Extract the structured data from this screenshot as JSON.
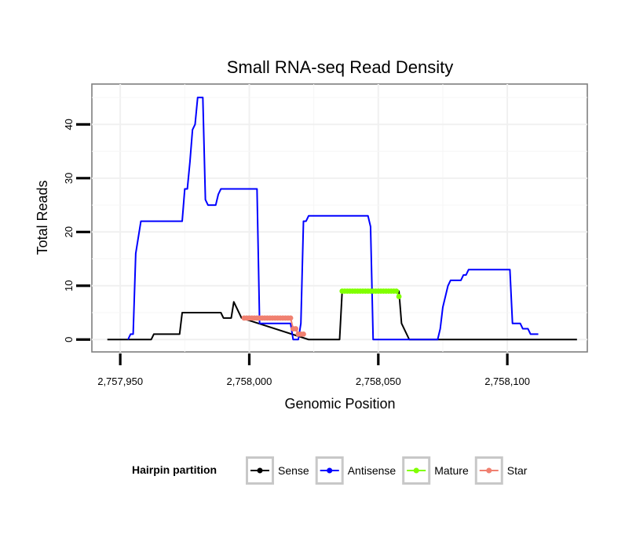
{
  "chart_data": {
    "type": "line",
    "title": "Small RNA-seq Read Density",
    "xlabel": "Genomic Position",
    "ylabel": "Total Reads",
    "xlim": [
      2757939,
      2758131
    ],
    "ylim": [
      -2.3,
      47.5
    ],
    "x_ticks": [
      2757950,
      2758000,
      2758050,
      2758100
    ],
    "x_tick_labels": [
      "2,757,950",
      "2,758,000",
      "2,758,050",
      "2,758,100"
    ],
    "y_ticks": [
      0,
      10,
      20,
      30,
      40
    ],
    "y_tick_labels": [
      "0",
      "10",
      "20",
      "30",
      "40"
    ],
    "grid": true,
    "legend": {
      "title": "Hairpin partition",
      "position": "bottom",
      "entries": [
        "Sense",
        "Antisense",
        "Mature",
        "Star"
      ]
    },
    "series": [
      {
        "name": "Sense",
        "color": "#000000",
        "marker": false,
        "points": [
          [
            2757945,
            0
          ],
          [
            2757962,
            0
          ],
          [
            2757963,
            1
          ],
          [
            2757973,
            1
          ],
          [
            2757974,
            5
          ],
          [
            2757989,
            5
          ],
          [
            2757990,
            4
          ],
          [
            2757993,
            4
          ],
          [
            2757994,
            7
          ],
          [
            2757997,
            4
          ],
          [
            2758023,
            0
          ],
          [
            2758035,
            0
          ],
          [
            2758036,
            9
          ],
          [
            2758058,
            9
          ],
          [
            2758059,
            3
          ],
          [
            2758062,
            0
          ],
          [
            2758127,
            0
          ]
        ]
      },
      {
        "name": "Antisense",
        "color": "#0000ff",
        "marker": false,
        "points": [
          [
            2757953,
            0
          ],
          [
            2757954,
            1
          ],
          [
            2757955,
            1
          ],
          [
            2757956,
            16
          ],
          [
            2757958,
            22
          ],
          [
            2757974,
            22
          ],
          [
            2757975,
            28
          ],
          [
            2757976,
            28
          ],
          [
            2757977,
            33
          ],
          [
            2757978,
            39
          ],
          [
            2757979,
            40
          ],
          [
            2757980,
            45
          ],
          [
            2757982,
            45
          ],
          [
            2757983,
            26
          ],
          [
            2757984,
            25
          ],
          [
            2757987,
            25
          ],
          [
            2757988,
            27
          ],
          [
            2757989,
            28
          ],
          [
            2758003,
            28
          ],
          [
            2758004,
            3
          ],
          [
            2758016,
            3
          ],
          [
            2758017,
            0
          ],
          [
            2758019,
            0
          ],
          [
            2758020,
            3
          ],
          [
            2758021,
            22
          ],
          [
            2758022,
            22
          ],
          [
            2758023,
            23
          ],
          [
            2758046,
            23
          ],
          [
            2758047,
            21
          ],
          [
            2758048,
            0
          ],
          [
            2758073,
            0
          ],
          [
            2758074,
            2
          ],
          [
            2758075,
            6
          ],
          [
            2758076,
            8
          ],
          [
            2758077,
            10
          ],
          [
            2758078,
            11
          ],
          [
            2758082,
            11
          ],
          [
            2758083,
            12
          ],
          [
            2758084,
            12
          ],
          [
            2758085,
            13
          ],
          [
            2758101,
            13
          ],
          [
            2758102,
            3
          ],
          [
            2758105,
            3
          ],
          [
            2758106,
            2
          ],
          [
            2758108,
            2
          ],
          [
            2758109,
            1
          ],
          [
            2758112,
            1
          ]
        ]
      },
      {
        "name": "Mature",
        "color": "#80ff00",
        "marker": true,
        "points": [
          [
            2758036,
            9
          ],
          [
            2758037,
            9
          ],
          [
            2758038,
            9
          ],
          [
            2758039,
            9
          ],
          [
            2758040,
            9
          ],
          [
            2758041,
            9
          ],
          [
            2758042,
            9
          ],
          [
            2758043,
            9
          ],
          [
            2758044,
            9
          ],
          [
            2758045,
            9
          ],
          [
            2758046,
            9
          ],
          [
            2758047,
            9
          ],
          [
            2758048,
            9
          ],
          [
            2758049,
            9
          ],
          [
            2758050,
            9
          ],
          [
            2758051,
            9
          ],
          [
            2758052,
            9
          ],
          [
            2758053,
            9
          ],
          [
            2758054,
            9
          ],
          [
            2758055,
            9
          ],
          [
            2758056,
            9
          ],
          [
            2758057,
            9
          ],
          [
            2758058,
            8
          ]
        ]
      },
      {
        "name": "Star",
        "color": "#f08070",
        "marker": true,
        "points": [
          [
            2757998,
            4
          ],
          [
            2757999,
            4
          ],
          [
            2758000,
            4
          ],
          [
            2758001,
            4
          ],
          [
            2758002,
            4
          ],
          [
            2758003,
            4
          ],
          [
            2758004,
            4
          ],
          [
            2758005,
            4
          ],
          [
            2758006,
            4
          ],
          [
            2758007,
            4
          ],
          [
            2758008,
            4
          ],
          [
            2758009,
            4
          ],
          [
            2758010,
            4
          ],
          [
            2758011,
            4
          ],
          [
            2758012,
            4
          ],
          [
            2758013,
            4
          ],
          [
            2758014,
            4
          ],
          [
            2758015,
            4
          ],
          [
            2758016,
            4
          ],
          [
            2758017,
            2
          ],
          [
            2758018,
            2
          ],
          [
            2758019,
            1
          ],
          [
            2758020,
            1
          ],
          [
            2758021,
            1
          ]
        ]
      }
    ]
  }
}
